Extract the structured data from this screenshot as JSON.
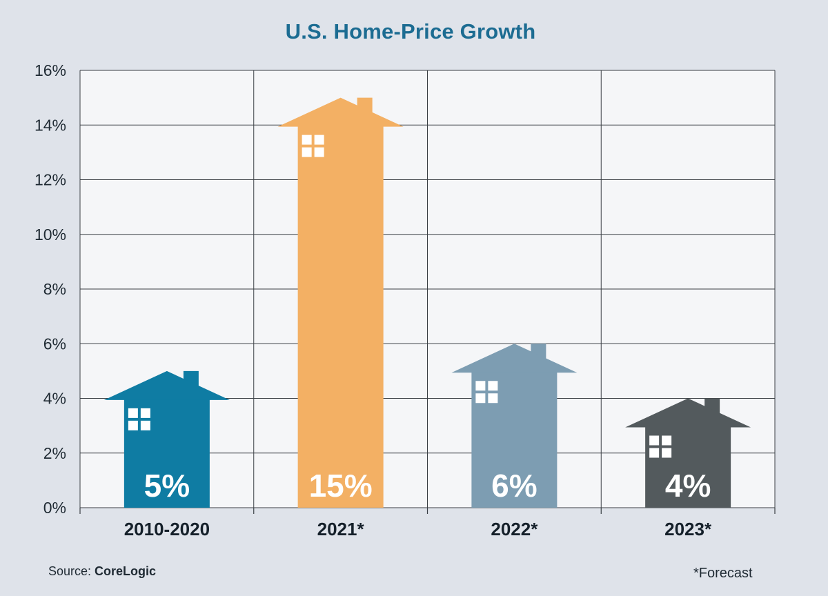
{
  "colors": {
    "background": "#dfe3ea",
    "plot_background": "#f5f6f8",
    "title": "#1c6c92",
    "grid": "#3a3f44"
  },
  "chart_data": {
    "type": "bar",
    "title": "U.S. Home-Price Growth",
    "categories": [
      "2010-2020",
      "2021*",
      "2022*",
      "2023*"
    ],
    "values": [
      5,
      15,
      6,
      4
    ],
    "value_labels": [
      "5%",
      "15%",
      "6%",
      "4%"
    ],
    "bar_colors": [
      "#0f7ca3",
      "#f3b064",
      "#7d9db2",
      "#535a5d"
    ],
    "bar_style": "house-shaped bars",
    "xlabel": "",
    "ylabel": "",
    "ylim": [
      0,
      16
    ],
    "yticks": [
      0,
      2,
      4,
      6,
      8,
      10,
      12,
      14,
      16
    ],
    "ytick_labels": [
      "0%",
      "2%",
      "4%",
      "6%",
      "8%",
      "10%",
      "12%",
      "14%",
      "16%"
    ],
    "grid": true
  },
  "source": {
    "prefix": "Source: ",
    "name": "CoreLogic"
  },
  "footnote": "*Forecast"
}
